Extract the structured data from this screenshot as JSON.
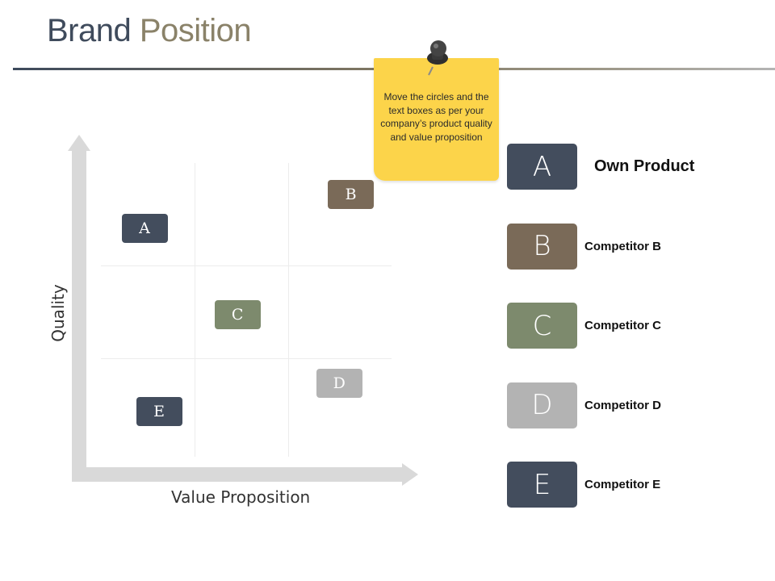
{
  "title": {
    "part1": "Brand ",
    "part2": "Position"
  },
  "note": {
    "text": "Move the circles and the text boxes as per your company’s product  quality and value proposition"
  },
  "chart": {
    "y_axis_label": "Quality",
    "x_axis_label": "Value Proposition"
  },
  "chart_data": {
    "type": "scatter",
    "xlabel": "Value Proposition",
    "ylabel": "Quality",
    "grid": "3x3",
    "points": [
      {
        "label": "A",
        "x": 0.15,
        "y": 0.78,
        "color": "#434d5d"
      },
      {
        "label": "B",
        "x": 0.86,
        "y": 0.9,
        "color": "#7a6a58"
      },
      {
        "label": "C",
        "x": 0.47,
        "y": 0.48,
        "color": "#7d8a6d"
      },
      {
        "label": "D",
        "x": 0.82,
        "y": 0.24,
        "color": "#b3b3b3"
      },
      {
        "label": "E",
        "x": 0.2,
        "y": 0.14,
        "color": "#434d5d"
      }
    ]
  },
  "legend": [
    {
      "letter": "A",
      "label": "Own Product",
      "color": "#434d5d"
    },
    {
      "letter": "B",
      "label": "Competitor B",
      "color": "#7a6a58"
    },
    {
      "letter": "C",
      "label": "Competitor C",
      "color": "#7d8a6d"
    },
    {
      "letter": "D",
      "label": "Competitor D",
      "color": "#b3b3b3"
    },
    {
      "letter": "E",
      "label": "Competitor E",
      "color": "#434d5d"
    }
  ],
  "icons": {
    "pin": "pushpin-icon"
  }
}
